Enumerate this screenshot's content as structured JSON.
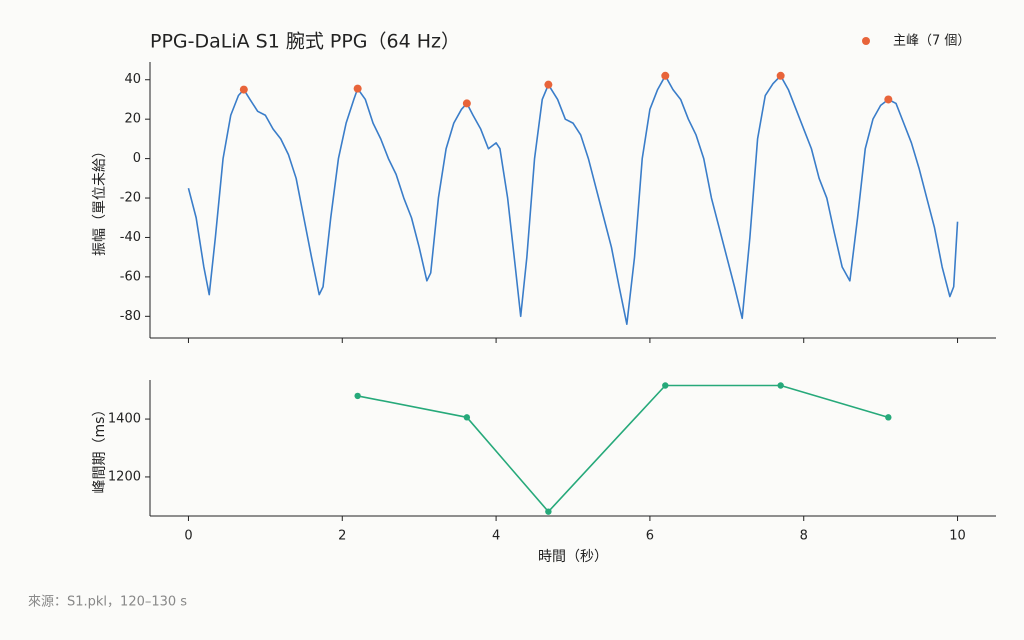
{
  "source": "來源：S1.pkl，120–130 s",
  "chart_data": [
    {
      "type": "line",
      "title": "PPG-DaLiA S1 腕式 PPG（64 Hz）",
      "ylabel": "振幅（單位未給）",
      "xlim": [
        -0.5,
        10.5
      ],
      "ylim": [
        -91,
        49
      ],
      "xticks": [
        0,
        2,
        4,
        6,
        8,
        10
      ],
      "yticks": [
        -80,
        -60,
        -40,
        -20,
        0,
        20,
        40
      ],
      "legend": "upper right",
      "series": [
        {
          "type": "line",
          "color": "#3a7dc9",
          "x": [
            0,
            0.1,
            0.2,
            0.27,
            0.35,
            0.45,
            0.55,
            0.65,
            0.72,
            0.8,
            0.9,
            1.0,
            1.1,
            1.2,
            1.3,
            1.4,
            1.5,
            1.6,
            1.7,
            1.75,
            1.85,
            1.95,
            2.05,
            2.15,
            2.2,
            2.3,
            2.4,
            2.5,
            2.6,
            2.7,
            2.8,
            2.9,
            3.0,
            3.1,
            3.15,
            3.25,
            3.35,
            3.45,
            3.55,
            3.62,
            3.7,
            3.8,
            3.9,
            4.0,
            4.05,
            4.15,
            4.25,
            4.32,
            4.4,
            4.5,
            4.6,
            4.68,
            4.8,
            4.9,
            5.0,
            5.1,
            5.2,
            5.3,
            5.4,
            5.5,
            5.6,
            5.7,
            5.8,
            5.9,
            6.0,
            6.1,
            6.2,
            6.3,
            6.4,
            6.5,
            6.6,
            6.7,
            6.8,
            6.9,
            7.0,
            7.1,
            7.2,
            7.3,
            7.4,
            7.5,
            7.6,
            7.7,
            7.8,
            7.9,
            8.0,
            8.1,
            8.2,
            8.3,
            8.4,
            8.5,
            8.6,
            8.7,
            8.8,
            8.9,
            9.0,
            9.1,
            9.2,
            9.3,
            9.4,
            9.5,
            9.6,
            9.7,
            9.8,
            9.9,
            9.95,
            10.0
          ],
          "values": [
            -15,
            -30,
            -55,
            -69,
            -40,
            0,
            22,
            32,
            35,
            30,
            24,
            22,
            15,
            10,
            2,
            -10,
            -30,
            -50,
            -69,
            -65,
            -30,
            0,
            18,
            30,
            35.5,
            30,
            18,
            10,
            0,
            -8,
            -20,
            -30,
            -45,
            -62,
            -58,
            -20,
            5,
            18,
            25,
            28,
            22,
            15,
            5,
            8,
            5,
            -20,
            -55,
            -80,
            -50,
            0,
            30,
            37.5,
            30,
            20,
            18,
            12,
            0,
            -15,
            -30,
            -45,
            -65,
            -84,
            -50,
            0,
            25,
            35,
            42,
            35,
            30,
            20,
            12,
            0,
            -20,
            -35,
            -50,
            -65,
            -81,
            -40,
            10,
            32,
            38,
            42,
            35,
            25,
            15,
            5,
            -10,
            -20,
            -38,
            -55,
            -62,
            -30,
            5,
            20,
            27,
            30,
            28,
            18,
            8,
            -5,
            -20,
            -35,
            -55,
            -70,
            -65,
            -32
          ]
        },
        {
          "type": "scatter",
          "name": "主峰（7 個）",
          "color": "#e8643a",
          "x": [
            0.72,
            2.2,
            3.62,
            4.68,
            6.2,
            7.7,
            9.1
          ],
          "values": [
            35,
            35.5,
            28,
            37.5,
            42,
            42,
            30
          ]
        }
      ]
    },
    {
      "type": "line",
      "ylabel": "峰間期（ms）",
      "xlabel": "時間（秒）",
      "markers": true,
      "xlim": [
        -0.5,
        10.5
      ],
      "ylim": [
        1065,
        1535
      ],
      "xticks": [
        0,
        2,
        4,
        6,
        8,
        10
      ],
      "yticks": [
        1200,
        1400
      ],
      "series": [
        {
          "type": "line",
          "color": "#26a97a",
          "x": [
            2.2,
            3.62,
            4.68,
            6.2,
            7.7,
            9.1
          ],
          "values": [
            1480,
            1406,
            1080,
            1516,
            1516,
            1406
          ]
        }
      ]
    }
  ]
}
